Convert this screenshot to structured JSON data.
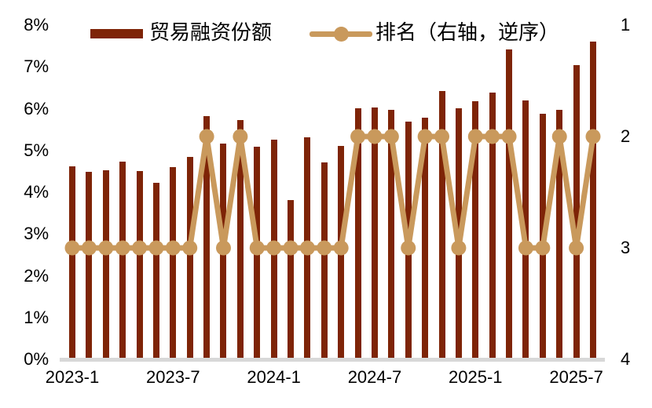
{
  "chart_data": {
    "type": "bar",
    "title": "",
    "x": [
      "2023-1",
      "2023-2",
      "2023-3",
      "2023-4",
      "2023-5",
      "2023-6",
      "2023-7",
      "2023-8",
      "2023-9",
      "2023-10",
      "2023-11",
      "2023-12",
      "2024-1",
      "2024-2",
      "2024-3",
      "2024-4",
      "2024-5",
      "2024-6",
      "2024-7",
      "2024-8",
      "2024-9",
      "2024-10",
      "2024-11",
      "2024-12",
      "2025-1",
      "2025-2",
      "2025-3",
      "2025-4",
      "2025-5",
      "2025-6",
      "2025-7",
      "2025-8"
    ],
    "series": [
      {
        "name": "贸易融资份额",
        "type": "bar",
        "axis": "left",
        "unit": "%",
        "values": [
          4.62,
          4.49,
          4.52,
          4.73,
          4.51,
          4.22,
          4.6,
          4.84,
          5.82,
          5.16,
          5.73,
          5.09,
          5.26,
          3.81,
          5.31,
          4.71,
          5.1,
          6.01,
          6.03,
          5.97,
          5.69,
          5.78,
          6.43,
          6.01,
          6.18,
          6.38,
          7.42,
          6.2,
          5.87,
          5.97,
          7.04,
          7.61
        ]
      },
      {
        "name": "排名（右轴，逆序）",
        "type": "line",
        "axis": "right",
        "values": [
          3,
          3,
          3,
          3,
          3,
          3,
          3,
          3,
          2,
          3,
          2,
          3,
          3,
          3,
          3,
          3,
          3,
          2,
          2,
          2,
          3,
          2,
          2,
          3,
          2,
          2,
          2,
          3,
          3,
          2,
          3,
          2
        ]
      }
    ],
    "left_axis": {
      "ticks": [
        "8%",
        "7%",
        "6%",
        "5%",
        "4%",
        "3%",
        "2%",
        "1%",
        "0%"
      ],
      "tick_values": [
        8,
        7,
        6,
        5,
        4,
        3,
        2,
        1,
        0
      ],
      "min": 0,
      "max": 8
    },
    "right_axis": {
      "ticks": [
        "1",
        "2",
        "3",
        "4"
      ],
      "tick_values": [
        1,
        2,
        3,
        4
      ],
      "min": 1,
      "max": 4,
      "inverted": true
    },
    "x_ticks": [
      {
        "label": "2023-1",
        "index": 0
      },
      {
        "label": "2023-7",
        "index": 6
      },
      {
        "label": "2024-1",
        "index": 12
      },
      {
        "label": "2024-7",
        "index": 18
      },
      {
        "label": "2025-1",
        "index": 24
      },
      {
        "label": "2025-7",
        "index": 30
      }
    ],
    "legend_position": "top",
    "grid": false
  },
  "legend": {
    "bar_label": "贸易融资份额",
    "line_label": "排名（右轴，逆序）"
  },
  "colors": {
    "bar": "#7E2407",
    "line": "#C9995C",
    "baseline": "#D8D8D8",
    "text": "#000000"
  }
}
